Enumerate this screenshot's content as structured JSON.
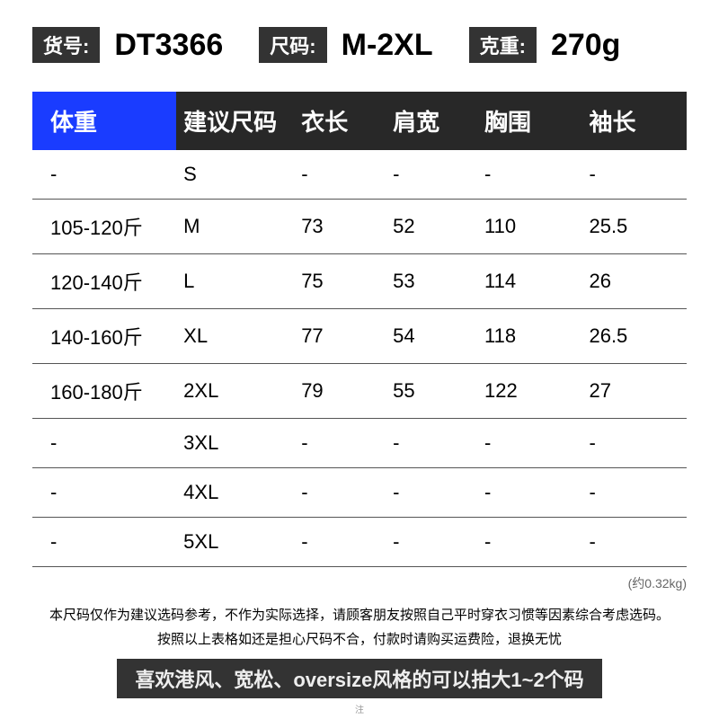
{
  "header": {
    "sku_label": "货号:",
    "sku_value": "DT3366",
    "size_label": "尺码:",
    "size_value": "M-2XL",
    "weight_label": "克重:",
    "weight_value": "270g"
  },
  "table": {
    "columns": [
      "体重",
      "建议尺码",
      "衣长",
      "肩宽",
      "胸围",
      "袖长"
    ],
    "rows": [
      [
        "-",
        "S",
        "-",
        "-",
        "-",
        "-"
      ],
      [
        "105-120斤",
        "M",
        "73",
        "52",
        "110",
        "25.5"
      ],
      [
        "120-140斤",
        "L",
        "75",
        "53",
        "114",
        "26"
      ],
      [
        "140-160斤",
        "XL",
        "77",
        "54",
        "118",
        "26.5"
      ],
      [
        "160-180斤",
        "2XL",
        "79",
        "55",
        "122",
        "27"
      ],
      [
        "-",
        "3XL",
        "-",
        "-",
        "-",
        "-"
      ],
      [
        "-",
        "4XL",
        "-",
        "-",
        "-",
        "-"
      ],
      [
        "-",
        "5XL",
        "-",
        "-",
        "-",
        "-"
      ]
    ]
  },
  "weight_note": "(约0.32kg)",
  "disclaimer_line1": "本尺码仅作为建议选码参考，不作为实际选择，请顾客朋友按照自己平时穿衣习惯等因素综合考虑选码。",
  "disclaimer_line2": "按照以上表格如还是担心尺码不合，付款时请购买运费险，退换无忧",
  "style_tip": "喜欢港风、宽松、oversize风格的可以拍大1~2个码",
  "tiny_note": "注",
  "colors": {
    "badge_bg": "#333333",
    "header_first_bg": "#1a3cff",
    "header_rest_bg": "#282828",
    "border": "#555555",
    "tip_bg": "#333333"
  }
}
